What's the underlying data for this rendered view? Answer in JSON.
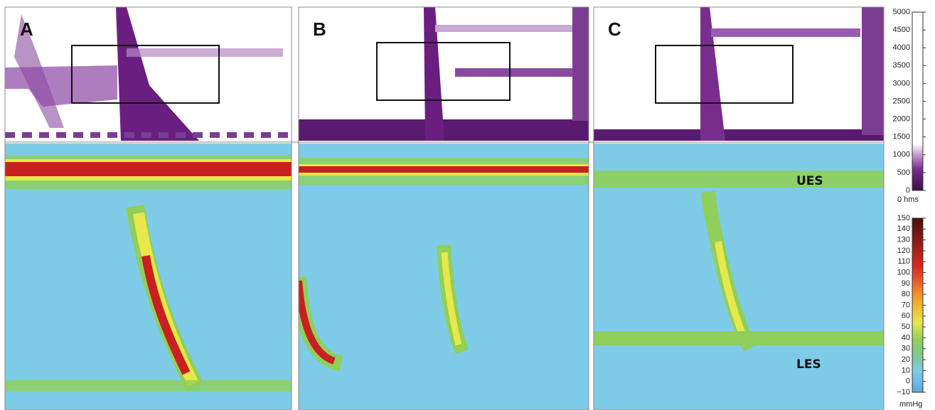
{
  "panels": [
    {
      "label": "A"
    },
    {
      "label": "B"
    },
    {
      "label": "C",
      "annotations": [
        "UES",
        "LES"
      ]
    }
  ],
  "impedance_scale": {
    "range": [
      0,
      5000
    ],
    "ticks": [
      0,
      500,
      1000,
      1500,
      2000,
      2500,
      3000,
      3500,
      4000,
      4500,
      5000
    ],
    "unit": "0 hms"
  },
  "pressure_scale": {
    "range": [
      -10,
      150
    ],
    "ticks": [
      {
        "value": -10,
        "label": "−10"
      },
      0,
      10,
      20,
      30,
      40,
      50,
      60,
      70,
      80,
      90,
      100,
      110,
      120,
      130,
      140,
      150
    ],
    "unit": "mmHg"
  }
}
